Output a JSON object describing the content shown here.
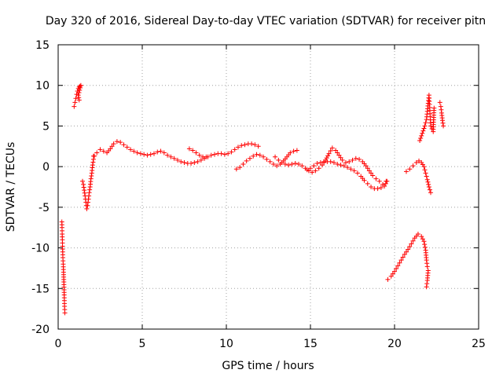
{
  "chart_data": {
    "type": "scatter",
    "title": "Day 320 of 2016, Sidereal Day-to-day VTEC variation (SDTVAR) for receiver pitn",
    "xlabel": "GPS time / hours",
    "ylabel": "SDTVAR / TECUs",
    "xlim": [
      0,
      25
    ],
    "ylim": [
      -20,
      15
    ],
    "grid": true,
    "marker": "plus",
    "color": "#ff0000",
    "x_ticks": [
      0,
      5,
      10,
      15,
      20,
      25
    ],
    "y_ticks": [
      -20,
      -15,
      -10,
      -5,
      0,
      5,
      10,
      15
    ],
    "x_tick_labels": [
      "0",
      "5",
      "10",
      "15",
      "20",
      "25"
    ],
    "y_tick_labels": [
      "-20",
      "-15",
      "-10",
      "-5",
      "0",
      "5",
      "10",
      "15"
    ],
    "segments": [
      {
        "name": "seg-a",
        "points": [
          [
            0.22,
            -6.8
          ],
          [
            0.23,
            -7.5
          ],
          [
            0.24,
            -8.3
          ],
          [
            0.25,
            -9.0
          ],
          [
            0.26,
            -9.8
          ],
          [
            0.27,
            -10.5
          ],
          [
            0.28,
            -11.2
          ],
          [
            0.3,
            -12.0
          ],
          [
            0.32,
            -13.0
          ],
          [
            0.34,
            -14.2
          ],
          [
            0.36,
            -15.8
          ],
          [
            0.38,
            -17.2
          ],
          [
            0.4,
            -18.0
          ]
        ]
      },
      {
        "name": "seg-b",
        "points": [
          [
            0.95,
            7.4
          ],
          [
            1.0,
            7.9
          ],
          [
            1.05,
            8.4
          ],
          [
            1.1,
            8.9
          ],
          [
            1.15,
            9.3
          ],
          [
            1.2,
            9.6
          ],
          [
            1.25,
            9.8
          ],
          [
            1.3,
            9.9
          ],
          [
            1.35,
            10.0
          ],
          [
            1.2,
            8.8
          ],
          [
            1.25,
            8.2
          ]
        ]
      },
      {
        "name": "seg-c",
        "points": [
          [
            1.45,
            -1.8
          ],
          [
            1.5,
            -2.2
          ],
          [
            1.55,
            -2.9
          ],
          [
            1.6,
            -3.6
          ],
          [
            1.65,
            -4.4
          ],
          [
            1.7,
            -5.2
          ],
          [
            1.75,
            -4.8
          ],
          [
            1.8,
            -4.0
          ],
          [
            1.85,
            -3.2
          ],
          [
            1.9,
            -2.5
          ],
          [
            1.95,
            -1.5
          ],
          [
            2.0,
            -0.8
          ],
          [
            2.05,
            0.2
          ],
          [
            2.1,
            0.9
          ],
          [
            2.15,
            1.3
          ]
        ]
      },
      {
        "name": "seg-d",
        "points": [
          [
            2.1,
            1.3
          ],
          [
            2.3,
            1.7
          ],
          [
            2.5,
            2.1
          ],
          [
            2.7,
            1.9
          ],
          [
            2.9,
            1.7
          ],
          [
            3.1,
            2.2
          ],
          [
            3.3,
            2.8
          ],
          [
            3.5,
            3.1
          ],
          [
            3.7,
            3.0
          ],
          [
            3.9,
            2.7
          ],
          [
            4.1,
            2.4
          ],
          [
            4.3,
            2.1
          ],
          [
            4.5,
            1.9
          ],
          [
            4.7,
            1.7
          ],
          [
            4.9,
            1.6
          ],
          [
            5.1,
            1.5
          ],
          [
            5.3,
            1.4
          ],
          [
            5.5,
            1.5
          ],
          [
            5.7,
            1.6
          ],
          [
            5.9,
            1.8
          ],
          [
            6.1,
            1.9
          ],
          [
            6.3,
            1.7
          ],
          [
            6.5,
            1.4
          ],
          [
            6.7,
            1.2
          ],
          [
            6.9,
            1.0
          ],
          [
            7.1,
            0.8
          ],
          [
            7.3,
            0.6
          ],
          [
            7.5,
            0.5
          ],
          [
            7.7,
            0.4
          ],
          [
            7.9,
            0.4
          ],
          [
            8.1,
            0.5
          ],
          [
            8.3,
            0.6
          ],
          [
            8.5,
            0.8
          ],
          [
            8.7,
            1.0
          ],
          [
            8.9,
            1.2
          ],
          [
            9.1,
            1.4
          ],
          [
            9.3,
            1.5
          ],
          [
            9.5,
            1.6
          ],
          [
            9.7,
            1.6
          ],
          [
            9.9,
            1.5
          ],
          [
            10.1,
            1.6
          ],
          [
            10.3,
            1.8
          ],
          [
            10.5,
            2.1
          ],
          [
            10.7,
            2.4
          ],
          [
            10.9,
            2.6
          ],
          [
            11.1,
            2.7
          ],
          [
            11.3,
            2.8
          ],
          [
            11.5,
            2.8
          ],
          [
            11.7,
            2.7
          ],
          [
            11.9,
            2.5
          ]
        ]
      },
      {
        "name": "seg-e",
        "points": [
          [
            7.8,
            2.2
          ],
          [
            8.0,
            2.0
          ],
          [
            8.2,
            1.7
          ],
          [
            8.4,
            1.4
          ],
          [
            8.6,
            1.2
          ],
          [
            8.8,
            1.2
          ]
        ]
      },
      {
        "name": "seg-f",
        "points": [
          [
            10.6,
            -0.3
          ],
          [
            10.8,
            -0.1
          ],
          [
            11.0,
            0.3
          ],
          [
            11.2,
            0.7
          ],
          [
            11.4,
            1.0
          ],
          [
            11.6,
            1.3
          ],
          [
            11.8,
            1.5
          ],
          [
            12.0,
            1.4
          ],
          [
            12.2,
            1.2
          ],
          [
            12.4,
            0.9
          ],
          [
            12.6,
            0.6
          ],
          [
            12.8,
            0.3
          ],
          [
            13.0,
            0.1
          ],
          [
            13.2,
            0.3
          ],
          [
            13.4,
            0.7
          ],
          [
            13.6,
            1.2
          ],
          [
            13.8,
            1.7
          ],
          [
            14.0,
            1.9
          ],
          [
            14.2,
            2.0
          ]
        ]
      },
      {
        "name": "seg-g",
        "points": [
          [
            12.9,
            1.2
          ],
          [
            13.1,
            0.8
          ],
          [
            13.3,
            0.5
          ],
          [
            13.5,
            0.3
          ],
          [
            13.7,
            0.2
          ],
          [
            13.9,
            0.3
          ],
          [
            14.1,
            0.4
          ],
          [
            14.3,
            0.3
          ],
          [
            14.5,
            0.1
          ],
          [
            14.7,
            -0.2
          ],
          [
            14.9,
            -0.5
          ],
          [
            15.1,
            -0.7
          ],
          [
            15.3,
            -0.5
          ],
          [
            15.5,
            -0.2
          ],
          [
            15.7,
            0.2
          ],
          [
            15.9,
            0.8
          ],
          [
            16.1,
            1.6
          ],
          [
            16.3,
            2.3
          ],
          [
            16.5,
            2.0
          ],
          [
            16.7,
            1.4
          ],
          [
            16.9,
            0.8
          ],
          [
            17.1,
            0.5
          ],
          [
            17.3,
            0.6
          ],
          [
            17.5,
            0.8
          ],
          [
            17.7,
            1.0
          ],
          [
            17.9,
            0.9
          ],
          [
            18.1,
            0.6
          ],
          [
            18.3,
            0.1
          ],
          [
            18.5,
            -0.5
          ],
          [
            18.7,
            -1.1
          ],
          [
            18.9,
            -1.5
          ],
          [
            19.1,
            -1.8
          ],
          [
            19.3,
            -2.2
          ],
          [
            19.5,
            -1.8
          ]
        ]
      },
      {
        "name": "seg-h",
        "points": [
          [
            14.8,
            -0.4
          ],
          [
            15.0,
            -0.2
          ],
          [
            15.2,
            0.1
          ],
          [
            15.4,
            0.4
          ],
          [
            15.6,
            0.5
          ],
          [
            15.8,
            0.6
          ],
          [
            16.0,
            0.6
          ],
          [
            16.2,
            0.6
          ],
          [
            16.4,
            0.5
          ],
          [
            16.6,
            0.3
          ],
          [
            16.8,
            0.2
          ],
          [
            17.0,
            0.1
          ],
          [
            17.2,
            -0.1
          ],
          [
            17.4,
            -0.3
          ],
          [
            17.6,
            -0.5
          ],
          [
            17.8,
            -0.8
          ],
          [
            18.0,
            -1.2
          ],
          [
            18.2,
            -1.7
          ],
          [
            18.4,
            -2.1
          ],
          [
            18.6,
            -2.5
          ],
          [
            18.8,
            -2.7
          ],
          [
            19.0,
            -2.7
          ],
          [
            19.2,
            -2.6
          ],
          [
            19.4,
            -2.4
          ],
          [
            19.55,
            -1.8
          ]
        ]
      },
      {
        "name": "seg-i",
        "points": [
          [
            19.6,
            -13.9
          ],
          [
            19.8,
            -13.5
          ],
          [
            20.0,
            -12.9
          ],
          [
            20.2,
            -12.2
          ],
          [
            20.4,
            -11.5
          ],
          [
            20.6,
            -10.8
          ],
          [
            20.8,
            -10.2
          ],
          [
            21.0,
            -9.5
          ],
          [
            21.2,
            -8.8
          ],
          [
            21.4,
            -8.3
          ],
          [
            21.6,
            -8.6
          ],
          [
            21.75,
            -9.2
          ],
          [
            21.85,
            -10.3
          ],
          [
            21.9,
            -11.5
          ],
          [
            21.95,
            -12.3
          ],
          [
            22.0,
            -12.8
          ],
          [
            21.95,
            -14.0
          ],
          [
            21.9,
            -14.8
          ]
        ]
      },
      {
        "name": "seg-j",
        "points": [
          [
            20.7,
            -0.6
          ],
          [
            20.9,
            -0.3
          ],
          [
            21.1,
            0.1
          ],
          [
            21.3,
            0.5
          ],
          [
            21.45,
            0.7
          ],
          [
            21.6,
            0.5
          ],
          [
            21.75,
            0.0
          ],
          [
            21.85,
            -0.8
          ],
          [
            21.95,
            -1.6
          ],
          [
            22.05,
            -2.5
          ],
          [
            22.15,
            -3.2
          ]
        ]
      },
      {
        "name": "seg-k",
        "points": [
          [
            21.5,
            3.2
          ],
          [
            21.6,
            3.8
          ],
          [
            21.7,
            4.4
          ],
          [
            21.8,
            5.0
          ],
          [
            21.9,
            5.8
          ],
          [
            21.95,
            6.8
          ],
          [
            22.0,
            7.8
          ],
          [
            22.05,
            8.8
          ],
          [
            22.15,
            5.0
          ],
          [
            22.3,
            4.3
          ],
          [
            22.35,
            7.2
          ]
        ]
      },
      {
        "name": "seg-l",
        "points": [
          [
            22.7,
            7.9
          ],
          [
            22.75,
            7.4
          ],
          [
            22.8,
            6.6
          ],
          [
            22.85,
            5.7
          ],
          [
            22.9,
            5.0
          ]
        ]
      }
    ]
  }
}
